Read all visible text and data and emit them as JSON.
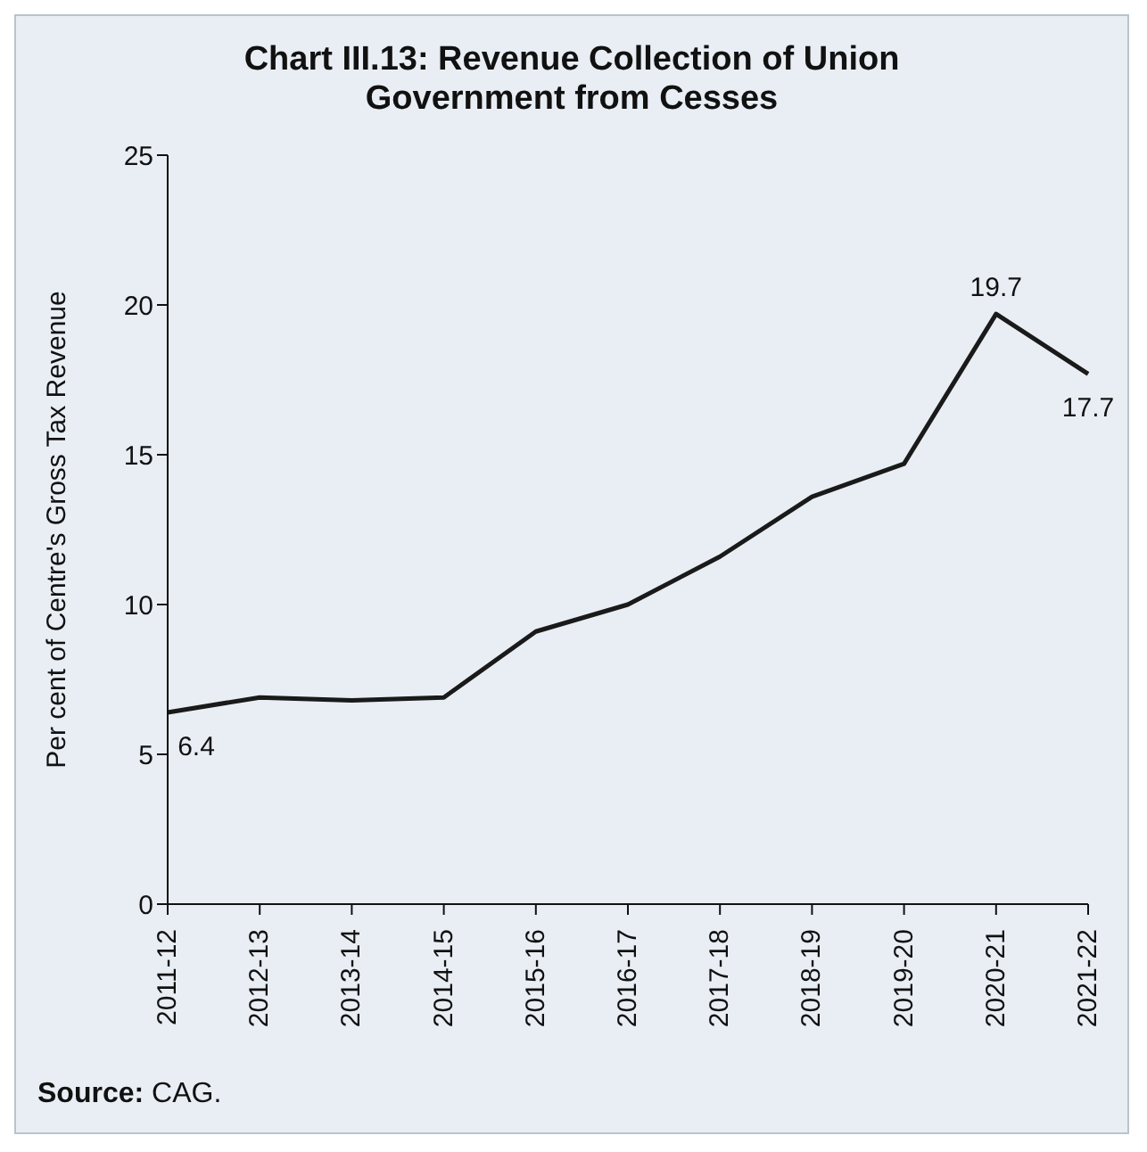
{
  "chart_data": {
    "type": "line",
    "title": "Chart III.13: Revenue Collection of Union Government from Cesses",
    "ylabel": "Per cent of Centre's Gross Tax Revenue",
    "categories": [
      "2011-12",
      "2012-13",
      "2013-14",
      "2014-15",
      "2015-16",
      "2016-17",
      "2017-18",
      "2018-19",
      "2019-20",
      "2020-21",
      "2021-22"
    ],
    "series": [
      {
        "color": "#1a1a1a",
        "values": [
          6.4,
          6.9,
          6.8,
          6.9,
          9.1,
          10.0,
          11.6,
          13.6,
          14.7,
          19.7,
          17.7
        ],
        "value_labels": [
          "6.4",
          null,
          null,
          null,
          null,
          null,
          null,
          null,
          null,
          "19.7",
          "17.7"
        ]
      }
    ],
    "ylim": [
      0,
      25
    ],
    "yticks": [
      0,
      5,
      10,
      15,
      20,
      25
    ],
    "grid": false,
    "legend": false,
    "marker": "none",
    "line_style": "solid",
    "annotations": [
      "Source: CAG."
    ]
  }
}
